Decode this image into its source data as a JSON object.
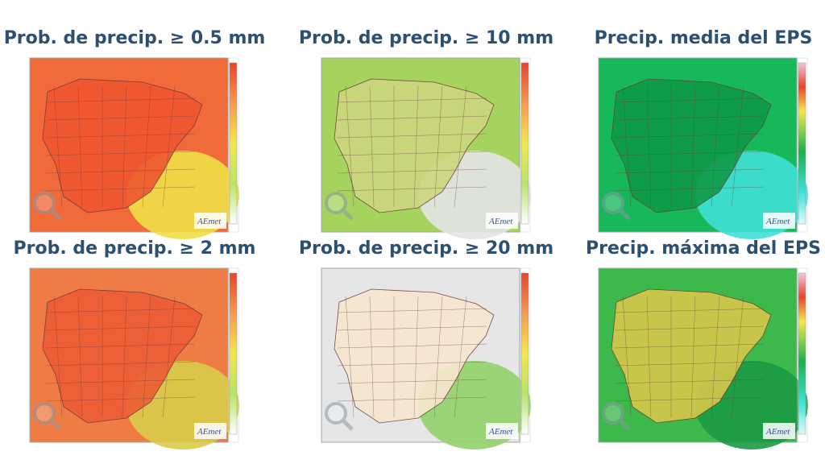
{
  "panels": [
    {
      "title": "Prob. de precip.  ≥ 0.5 mm"
    },
    {
      "title": "Prob. de precip.  ≥ 10 mm"
    },
    {
      "title": "Precip. media del EPS"
    },
    {
      "title": "Prob. de precip.  ≥ 2 mm"
    },
    {
      "title": "Prob. de precip.  ≥ 20 mm"
    },
    {
      "title": "Precip. máxima del EPS"
    }
  ],
  "logo": "AEmet"
}
